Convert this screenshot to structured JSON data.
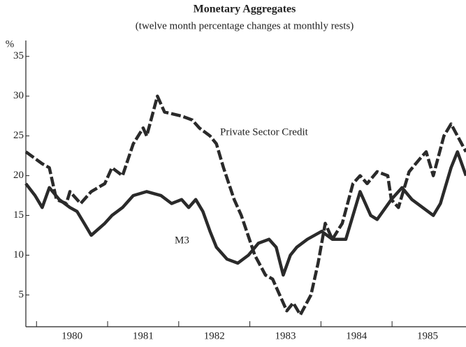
{
  "chart_data": {
    "type": "line",
    "title": "Monetary Aggregates",
    "subtitle": "(twelve month percentage changes at monthly rests)",
    "y_label": "%",
    "annotations": [
      "Private Sector Credit",
      "M3"
    ],
    "xlim": [
      1979.85,
      1986.04
    ],
    "xticks": [
      1980,
      1981,
      1982,
      1983,
      1984,
      1985
    ],
    "ylim": [
      1,
      37
    ],
    "yticks": [
      5,
      10,
      15,
      20,
      25,
      30,
      35
    ],
    "series": [
      {
        "name": "Private Sector Credit",
        "color": "#2a2a2a",
        "dashed": true,
        "x": [
          1979.85,
          1980.08,
          1980.18,
          1980.28,
          1980.42,
          1980.47,
          1980.62,
          1980.77,
          1980.96,
          1981.06,
          1981.21,
          1981.36,
          1981.5,
          1981.55,
          1981.7,
          1981.8,
          1982.04,
          1982.19,
          1982.29,
          1982.44,
          1982.53,
          1982.63,
          1982.78,
          1982.88,
          1983.07,
          1983.22,
          1983.32,
          1983.42,
          1983.52,
          1983.61,
          1983.71,
          1983.86,
          1983.96,
          1984.06,
          1984.16,
          1984.3,
          1984.45,
          1984.55,
          1984.65,
          1984.79,
          1984.94,
          1984.99,
          1985.09,
          1985.24,
          1985.38,
          1985.48,
          1985.58,
          1985.73,
          1985.83,
          1985.92,
          1986.04
        ],
        "values": [
          23,
          21.5,
          21,
          17,
          16.5,
          18,
          16.5,
          18,
          19,
          21,
          20,
          24,
          26,
          25,
          30,
          28,
          27.5,
          27,
          26,
          25,
          24,
          21,
          17,
          15,
          10,
          7.5,
          7,
          5,
          3,
          4,
          2.5,
          5,
          9,
          14,
          12,
          14,
          19,
          20,
          19,
          20.5,
          20,
          17,
          16,
          20.5,
          22,
          23,
          20,
          25,
          26.5,
          25,
          23
        ]
      },
      {
        "name": "M3",
        "color": "#2a2a2a",
        "dashed": false,
        "x": [
          1979.85,
          1979.98,
          1980.08,
          1980.18,
          1980.32,
          1980.47,
          1980.57,
          1980.67,
          1980.77,
          1980.96,
          1981.06,
          1981.21,
          1981.36,
          1981.55,
          1981.75,
          1981.9,
          1982.04,
          1982.14,
          1982.24,
          1982.34,
          1982.44,
          1982.53,
          1982.68,
          1982.83,
          1982.98,
          1983.12,
          1983.27,
          1983.37,
          1983.47,
          1983.57,
          1983.66,
          1983.81,
          1984.01,
          1984.16,
          1984.35,
          1984.45,
          1984.55,
          1984.7,
          1984.79,
          1984.99,
          1985.14,
          1985.28,
          1985.43,
          1985.58,
          1985.68,
          1985.83,
          1985.92,
          1986.04
        ],
        "values": [
          19,
          17.5,
          16,
          18.5,
          17,
          16,
          15.5,
          14,
          12.5,
          14,
          15,
          16,
          17.5,
          18,
          17.5,
          16.5,
          17,
          16,
          17,
          15.5,
          13,
          11,
          9.5,
          9,
          10,
          11.5,
          12,
          11,
          7.5,
          10,
          11,
          12,
          13,
          12,
          12,
          15,
          18,
          15,
          14.5,
          17,
          18.5,
          17,
          16,
          15,
          16.5,
          21,
          23,
          20
        ]
      }
    ]
  }
}
